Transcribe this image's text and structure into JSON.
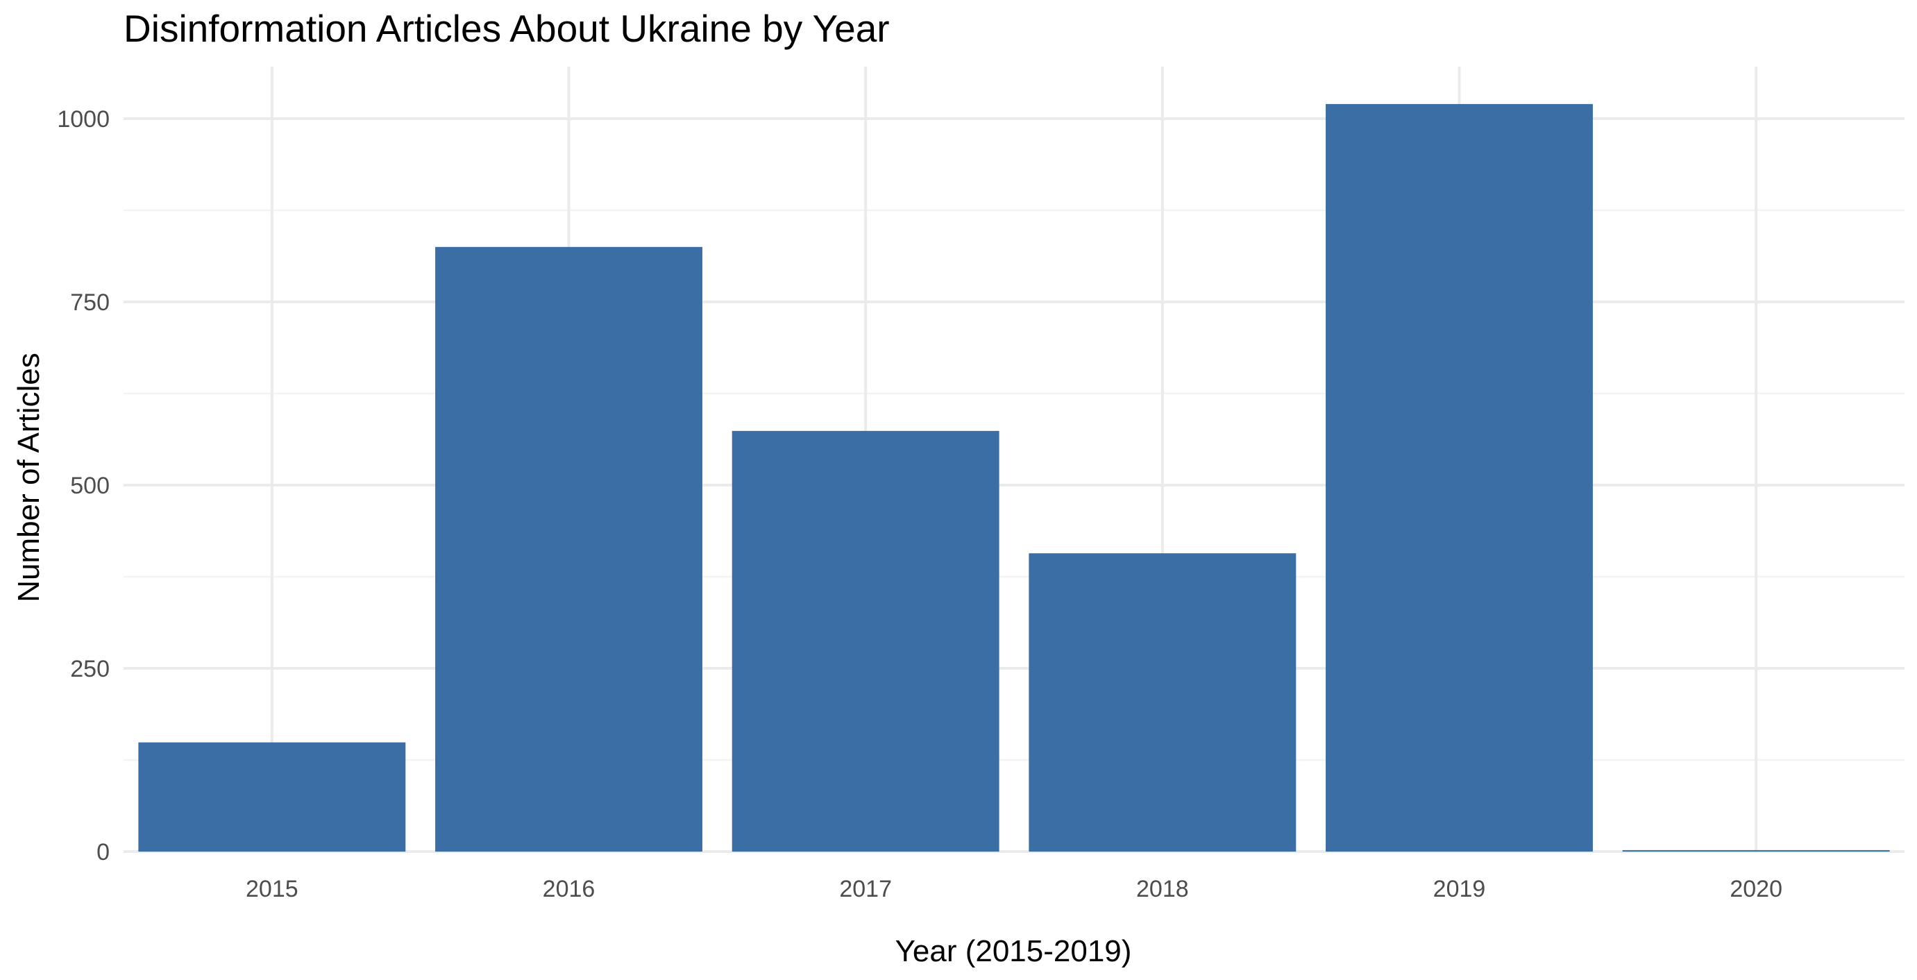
{
  "colors": {
    "background": "#FFFFFF",
    "bar_fill": "#3A6EA5",
    "grid": "#EBEBEB",
    "tick_text": "#4D4D4D",
    "title_text": "#000000"
  },
  "chart_data": {
    "type": "bar",
    "title": "Disinformation Articles About Ukraine by Year",
    "xlabel": "Year (2015-2019)",
    "ylabel": "Number of Articles",
    "categories": [
      "2015",
      "2016",
      "2017",
      "2018",
      "2019",
      "2020"
    ],
    "values": [
      149,
      825,
      574,
      407,
      1020,
      2
    ],
    "ylim": [
      0,
      1070
    ],
    "yticks": [
      0,
      250,
      500,
      750,
      1000
    ],
    "ytick_labels": [
      "0",
      "250",
      "500",
      "750",
      "1000"
    ],
    "grid": true,
    "legend": "none"
  }
}
